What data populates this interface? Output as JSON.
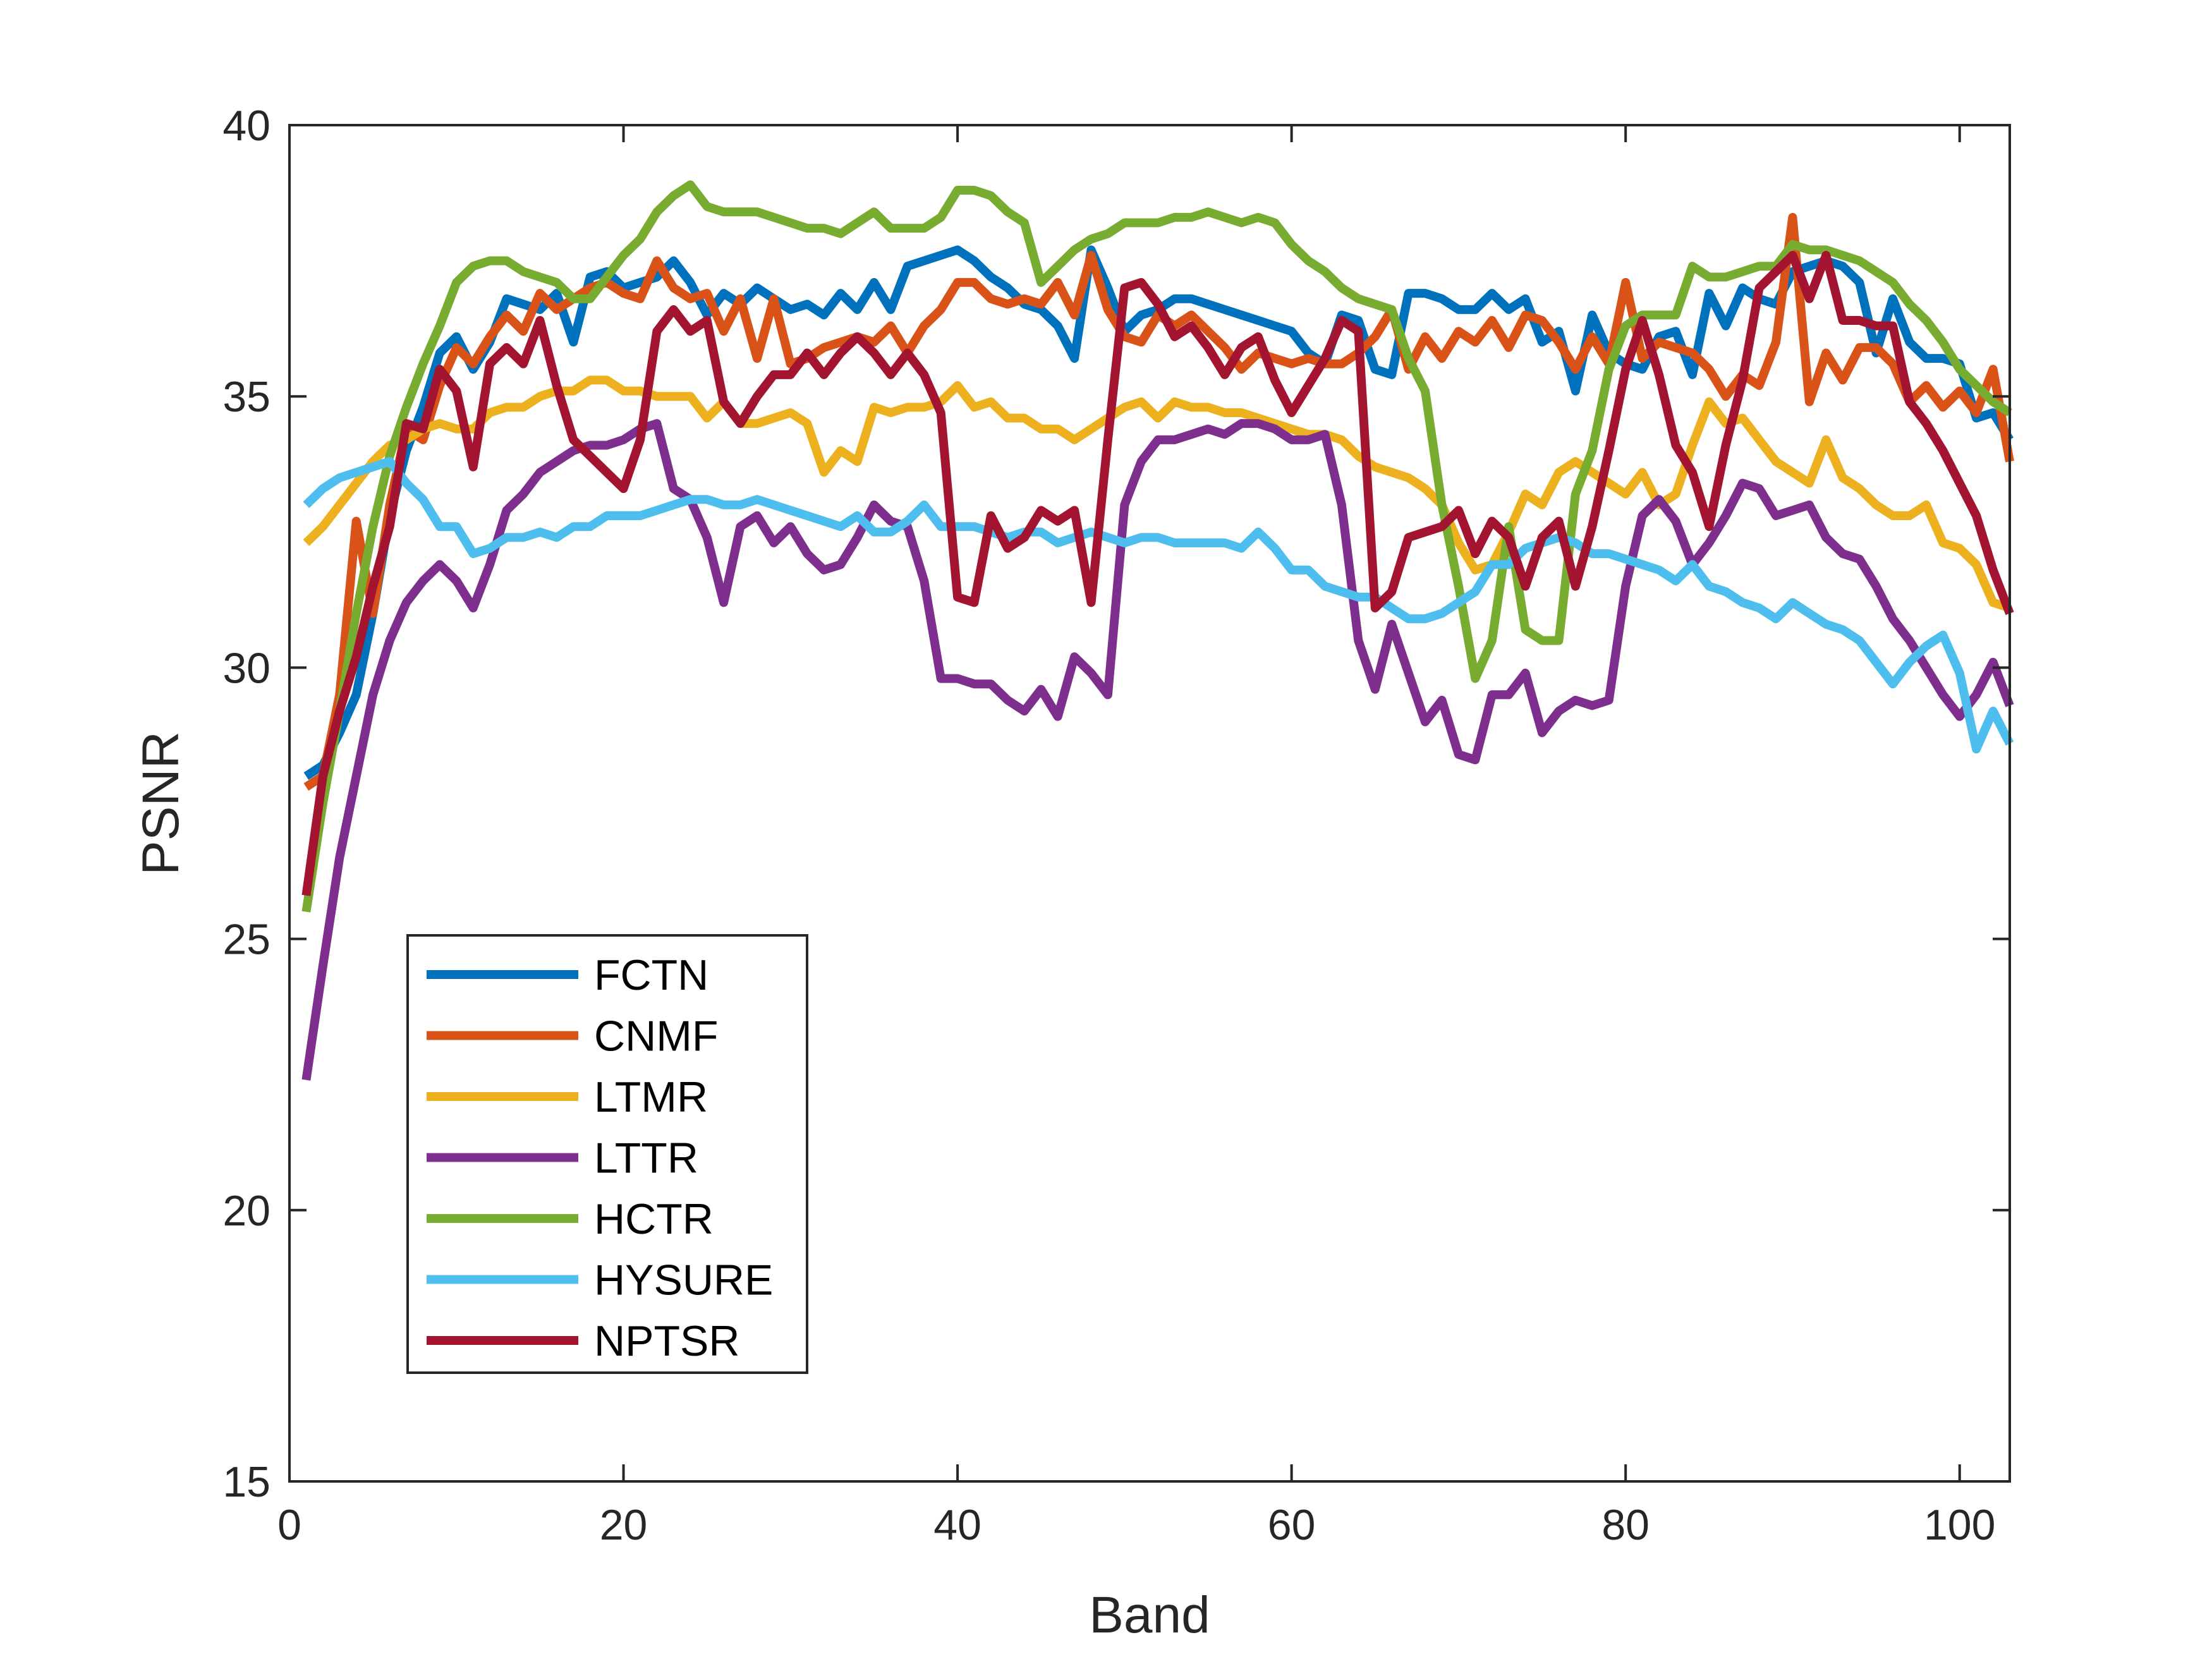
{
  "chart_data": {
    "type": "line",
    "title": "",
    "xlabel": "Band",
    "ylabel": "PSNR",
    "xlim": [
      0,
      103
    ],
    "ylim": [
      15,
      40
    ],
    "xticks": [
      0,
      20,
      40,
      60,
      80,
      100
    ],
    "yticks": [
      15,
      20,
      25,
      30,
      35,
      40
    ],
    "grid": false,
    "legend_position": "lower-left",
    "x": [
      1,
      2,
      3,
      4,
      5,
      6,
      7,
      8,
      9,
      10,
      11,
      12,
      13,
      14,
      15,
      16,
      17,
      18,
      19,
      20,
      21,
      22,
      23,
      24,
      25,
      26,
      27,
      28,
      29,
      30,
      31,
      32,
      33,
      34,
      35,
      36,
      37,
      38,
      39,
      40,
      41,
      42,
      43,
      44,
      45,
      46,
      47,
      48,
      49,
      50,
      51,
      52,
      53,
      54,
      55,
      56,
      57,
      58,
      59,
      60,
      61,
      62,
      63,
      64,
      65,
      66,
      67,
      68,
      69,
      70,
      71,
      72,
      73,
      74,
      75,
      76,
      77,
      78,
      79,
      80,
      81,
      82,
      83,
      84,
      85,
      86,
      87,
      88,
      89,
      90,
      91,
      92,
      93,
      94,
      95,
      96,
      97,
      98,
      99,
      100,
      101,
      102,
      103
    ],
    "series": [
      {
        "name": "FCTN",
        "color": "#0072BD",
        "values": [
          28.0,
          28.2,
          28.8,
          29.5,
          31.0,
          32.8,
          34.0,
          34.8,
          35.8,
          36.1,
          35.5,
          36.0,
          36.8,
          36.7,
          36.6,
          36.9,
          36.0,
          37.2,
          37.3,
          37.0,
          37.1,
          37.2,
          37.5,
          37.1,
          36.5,
          36.9,
          36.7,
          37.0,
          36.8,
          36.6,
          36.7,
          36.5,
          36.9,
          36.6,
          37.1,
          36.6,
          37.4,
          37.5,
          37.6,
          37.7,
          37.5,
          37.2,
          37.0,
          36.7,
          36.6,
          36.3,
          35.7,
          37.7,
          37.0,
          36.2,
          36.5,
          36.6,
          36.8,
          36.8,
          36.7,
          36.6,
          36.5,
          36.4,
          36.3,
          36.2,
          35.8,
          35.6,
          36.5,
          36.4,
          35.5,
          35.4,
          36.9,
          36.9,
          36.8,
          36.6,
          36.6,
          36.9,
          36.6,
          36.8,
          36.0,
          36.2,
          35.1,
          36.5,
          35.8,
          35.6,
          35.5,
          36.1,
          36.2,
          35.4,
          36.9,
          36.3,
          37.0,
          36.8,
          36.7,
          37.3,
          37.4,
          37.5,
          37.4,
          37.1,
          35.8,
          36.8,
          36.0,
          35.7,
          35.7,
          35.6,
          34.6,
          34.7,
          34.2
        ]
      },
      {
        "name": "CNMF",
        "color": "#D95319",
        "values": [
          27.8,
          28.0,
          29.5,
          32.7,
          31.0,
          33.0,
          34.4,
          34.2,
          35.2,
          35.9,
          35.6,
          36.1,
          36.5,
          36.2,
          36.9,
          36.6,
          36.8,
          37.0,
          37.1,
          36.9,
          36.8,
          37.5,
          37.0,
          36.8,
          36.9,
          36.2,
          36.8,
          35.7,
          36.8,
          35.6,
          35.7,
          35.9,
          36.0,
          36.1,
          36.0,
          36.3,
          35.8,
          36.3,
          36.6,
          37.1,
          37.1,
          36.8,
          36.7,
          36.8,
          36.7,
          37.1,
          36.5,
          37.6,
          36.6,
          36.1,
          36.0,
          36.5,
          36.3,
          36.5,
          36.2,
          35.9,
          35.5,
          35.8,
          35.7,
          35.6,
          35.7,
          35.6,
          35.6,
          35.8,
          36.1,
          36.6,
          35.5,
          36.1,
          35.7,
          36.2,
          36.0,
          36.4,
          35.9,
          36.5,
          36.4,
          36.0,
          35.5,
          36.1,
          35.6,
          37.1,
          35.7,
          36.0,
          35.9,
          35.8,
          35.5,
          35.0,
          35.4,
          35.2,
          36.0,
          38.3,
          34.9,
          35.8,
          35.3,
          35.9,
          35.9,
          35.6,
          34.9,
          35.2,
          34.8,
          35.1,
          34.7,
          35.5,
          33.8
        ]
      },
      {
        "name": "LTMR",
        "color": "#EDB120",
        "values": [
          32.3,
          32.6,
          33.0,
          33.4,
          33.8,
          34.1,
          34.2,
          34.4,
          34.5,
          34.4,
          34.4,
          34.7,
          34.8,
          34.8,
          35.0,
          35.1,
          35.1,
          35.3,
          35.3,
          35.1,
          35.1,
          35.0,
          35.0,
          35.0,
          34.6,
          34.9,
          34.5,
          34.5,
          34.6,
          34.7,
          34.5,
          33.6,
          34.0,
          33.8,
          34.8,
          34.7,
          34.8,
          34.8,
          34.9,
          35.2,
          34.8,
          34.9,
          34.6,
          34.6,
          34.4,
          34.4,
          34.2,
          34.4,
          34.6,
          34.8,
          34.9,
          34.6,
          34.9,
          34.8,
          34.8,
          34.7,
          34.7,
          34.6,
          34.5,
          34.4,
          34.3,
          34.3,
          34.2,
          33.9,
          33.7,
          33.6,
          33.5,
          33.3,
          33.0,
          32.3,
          31.8,
          31.9,
          32.5,
          33.2,
          33.0,
          33.6,
          33.8,
          33.6,
          33.4,
          33.2,
          33.6,
          33.0,
          33.2,
          34.1,
          34.9,
          34.5,
          34.6,
          34.2,
          33.8,
          33.6,
          33.4,
          34.2,
          33.5,
          33.3,
          33.0,
          32.8,
          32.8,
          33.0,
          32.3,
          32.2,
          31.9,
          31.2,
          31.1
        ]
      },
      {
        "name": "LTTR",
        "color": "#7E2F8E",
        "values": [
          22.4,
          24.5,
          26.5,
          28.0,
          29.5,
          30.5,
          31.2,
          31.6,
          31.9,
          31.6,
          31.1,
          31.9,
          32.9,
          33.2,
          33.6,
          33.8,
          34.0,
          34.1,
          34.1,
          34.2,
          34.4,
          34.5,
          33.3,
          33.1,
          32.4,
          31.2,
          32.6,
          32.8,
          32.3,
          32.6,
          32.1,
          31.8,
          31.9,
          32.4,
          33.0,
          32.7,
          32.6,
          31.6,
          29.8,
          29.8,
          29.7,
          29.7,
          29.4,
          29.2,
          29.6,
          29.1,
          30.2,
          29.9,
          29.5,
          33.0,
          33.8,
          34.2,
          34.2,
          34.3,
          34.4,
          34.3,
          34.5,
          34.5,
          34.4,
          34.2,
          34.2,
          34.3,
          33.0,
          30.5,
          29.6,
          30.8,
          29.9,
          29.0,
          29.4,
          28.4,
          28.3,
          29.5,
          29.5,
          29.9,
          28.8,
          29.2,
          29.4,
          29.3,
          29.4,
          31.5,
          32.8,
          33.1,
          32.7,
          31.9,
          32.3,
          32.8,
          33.4,
          33.3,
          32.8,
          32.9,
          33.0,
          32.4,
          32.1,
          32.0,
          31.5,
          30.9,
          30.5,
          30.0,
          29.5,
          29.1,
          29.5,
          30.1,
          29.3
        ]
      },
      {
        "name": "HCTR",
        "color": "#77AC30",
        "values": [
          25.5,
          27.5,
          29.2,
          31.0,
          32.6,
          33.9,
          34.8,
          35.6,
          36.3,
          37.1,
          37.4,
          37.5,
          37.5,
          37.3,
          37.2,
          37.1,
          36.8,
          36.8,
          37.2,
          37.6,
          37.9,
          38.4,
          38.7,
          38.9,
          38.5,
          38.4,
          38.4,
          38.4,
          38.3,
          38.2,
          38.1,
          38.1,
          38.0,
          38.2,
          38.4,
          38.1,
          38.1,
          38.1,
          38.3,
          38.8,
          38.8,
          38.7,
          38.4,
          38.2,
          37.1,
          37.4,
          37.7,
          37.9,
          38.0,
          38.2,
          38.2,
          38.2,
          38.3,
          38.3,
          38.4,
          38.3,
          38.2,
          38.3,
          38.2,
          37.8,
          37.5,
          37.3,
          37.0,
          36.8,
          36.7,
          36.6,
          35.7,
          35.1,
          33.0,
          31.5,
          29.8,
          30.5,
          32.6,
          30.7,
          30.5,
          30.5,
          33.2,
          34.0,
          35.5,
          36.3,
          36.5,
          36.5,
          36.5,
          37.4,
          37.2,
          37.2,
          37.3,
          37.4,
          37.4,
          37.8,
          37.7,
          37.7,
          37.6,
          37.5,
          37.3,
          37.1,
          36.7,
          36.4,
          36.0,
          35.5,
          35.2,
          34.9,
          34.7
        ]
      },
      {
        "name": "HYSURE",
        "color": "#4DBEEE",
        "values": [
          33.0,
          33.3,
          33.5,
          33.6,
          33.7,
          33.8,
          33.4,
          33.1,
          32.6,
          32.6,
          32.1,
          32.2,
          32.4,
          32.4,
          32.5,
          32.4,
          32.6,
          32.6,
          32.8,
          32.8,
          32.8,
          32.9,
          33.0,
          33.1,
          33.1,
          33.0,
          33.0,
          33.1,
          33.0,
          32.9,
          32.8,
          32.7,
          32.6,
          32.8,
          32.5,
          32.5,
          32.7,
          33.0,
          32.6,
          32.6,
          32.6,
          32.5,
          32.4,
          32.5,
          32.5,
          32.3,
          32.4,
          32.5,
          32.4,
          32.3,
          32.4,
          32.4,
          32.3,
          32.3,
          32.3,
          32.3,
          32.2,
          32.5,
          32.2,
          31.8,
          31.8,
          31.5,
          31.4,
          31.3,
          31.3,
          31.1,
          30.9,
          30.9,
          31.0,
          31.2,
          31.4,
          31.9,
          31.9,
          32.2,
          32.3,
          32.4,
          32.3,
          32.1,
          32.1,
          32.0,
          31.9,
          31.8,
          31.6,
          31.9,
          31.5,
          31.4,
          31.2,
          31.1,
          30.9,
          31.2,
          31.0,
          30.8,
          30.7,
          30.5,
          30.1,
          29.7,
          30.1,
          30.4,
          30.6,
          29.9,
          28.5,
          29.2,
          28.6
        ]
      },
      {
        "name": "NPTSR",
        "color": "#A2142F",
        "values": [
          25.8,
          28.0,
          29.2,
          30.2,
          31.5,
          32.6,
          34.5,
          34.4,
          35.5,
          35.1,
          33.7,
          35.6,
          35.9,
          35.6,
          36.4,
          35.2,
          34.2,
          33.9,
          33.6,
          33.3,
          34.2,
          36.2,
          36.6,
          36.2,
          36.4,
          34.9,
          34.5,
          35.0,
          35.4,
          35.4,
          35.8,
          35.4,
          35.8,
          36.1,
          35.8,
          35.4,
          35.8,
          35.4,
          34.7,
          31.3,
          31.2,
          32.8,
          32.2,
          32.4,
          32.9,
          32.7,
          32.9,
          31.2,
          34.2,
          37.0,
          37.1,
          36.7,
          36.1,
          36.3,
          35.9,
          35.4,
          35.9,
          36.1,
          35.3,
          34.7,
          35.2,
          35.7,
          36.4,
          36.2,
          31.1,
          31.4,
          32.4,
          32.5,
          32.6,
          32.9,
          32.1,
          32.7,
          32.4,
          31.5,
          32.4,
          32.7,
          31.5,
          32.6,
          34.0,
          35.5,
          36.4,
          35.4,
          34.1,
          33.6,
          32.6,
          34.1,
          35.3,
          37.0,
          37.3,
          37.6,
          36.8,
          37.6,
          36.4,
          36.4,
          36.3,
          36.3,
          34.9,
          34.5,
          34.0,
          33.4,
          32.8,
          31.8,
          31.0
        ]
      }
    ]
  }
}
